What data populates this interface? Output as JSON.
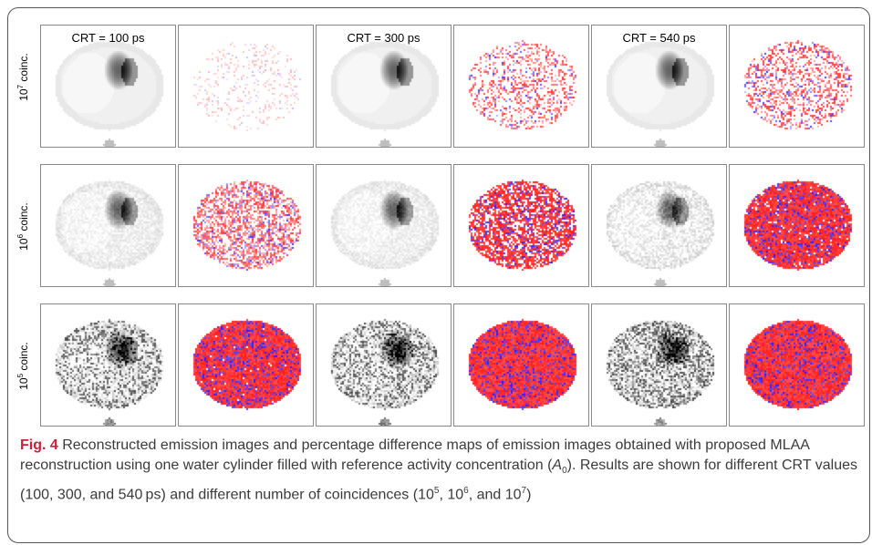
{
  "columns": [
    {
      "crt_label": "CRT = 100 ps"
    },
    {
      "crt_label": ""
    },
    {
      "crt_label": "CRT = 300 ps"
    },
    {
      "crt_label": ""
    },
    {
      "crt_label": "CRT = 540 ps"
    },
    {
      "crt_label": ""
    }
  ],
  "rows": [
    {
      "prefix": "10",
      "exponent": "7",
      "suffix": " coinc."
    },
    {
      "prefix": "10",
      "exponent": "6",
      "suffix": " coinc."
    },
    {
      "prefix": "10",
      "exponent": "5",
      "suffix": " coinc."
    }
  ],
  "colors": {
    "positive": "#ff1a1a",
    "negative": "#2a1aff",
    "neutral": "#ffffff",
    "caption_title": "#cc1f3a",
    "caption_text": "#3b3b3b"
  },
  "caption": {
    "fig": "Fig. 4",
    "t1": " Reconstructed emission images and percentage difference maps of emission images obtained with proposed MLAA reconstruction using one water cylinder filled with reference activity concentration (",
    "a_symbol": "A",
    "a_sub": "0",
    "t2": "). Results are shown for different CRT values (100, 300, and 540 ps) and different number of coincidences (10",
    "e5": "5",
    "t3": ", 10",
    "e6": "6",
    "t4": ", and 10",
    "e7": "7",
    "t5": ")"
  }
}
